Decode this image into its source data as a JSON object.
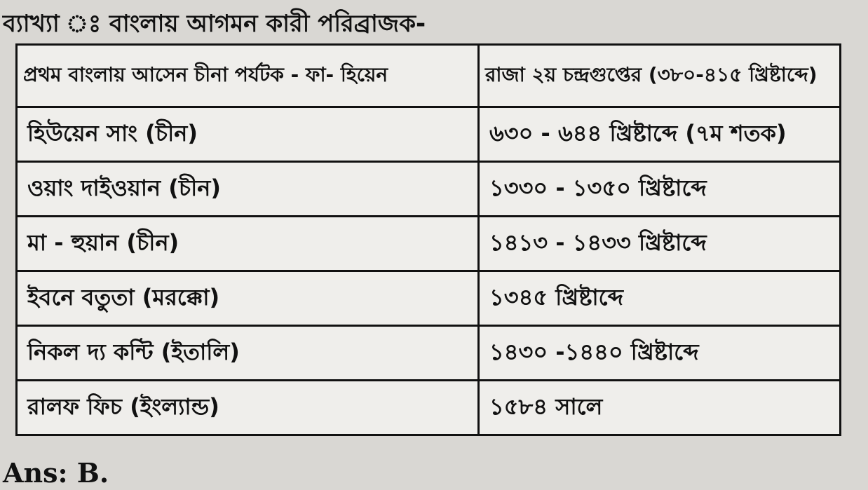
{
  "title": "ব্যাখ্যা ঃ বাংলায় আগমন কারী পরিব্রাজক-",
  "rows": [
    {
      "traveler": "প্রথম বাংলায় আসেন চীনা পর্যটক - ফা- হিয়েন",
      "period": "রাজা ২য় চন্দ্রগুপ্তের (৩৮০-৪১৫ খ্রিষ্টাব্দে)"
    },
    {
      "traveler": "হিউয়েন সাং (চীন)",
      "period": "৬৩০ - ৬৪৪ খ্রিষ্টাব্দে (৭ম শতক)"
    },
    {
      "traveler": "ওয়াং দাইওয়ান (চীন)",
      "period": "১৩৩০ - ১৩৫০ খ্রিষ্টাব্দে"
    },
    {
      "traveler": "মা - হুয়ান (চীন)",
      "period": "১৪১৩ - ১৪৩৩ খ্রিষ্টাব্দে"
    },
    {
      "traveler": "ইবনে বতুতা (মরক্কো)",
      "period": "১৩৪৫ খ্রিষ্টাব্দে"
    },
    {
      "traveler": "নিকল দ্য কন্টি (ইতালি)",
      "period": "১৪৩০ -১৪৪০ খ্রিষ্টাব্দে"
    },
    {
      "traveler": "রালফ ফিচ (ইংল্যান্ড)",
      "period": "১৫৮৪ সালে"
    }
  ],
  "answer": "Ans: B."
}
